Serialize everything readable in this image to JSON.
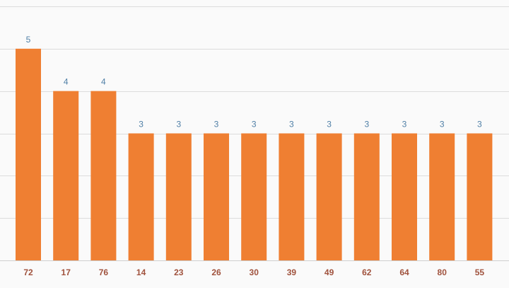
{
  "colors": {
    "bar": "#ef7f32",
    "value_label": "#4f7fa6",
    "tick_label": "#a0523d",
    "grid": "#dcdcdc",
    "background": "#fafafa"
  },
  "chart_data": {
    "type": "bar",
    "title": "",
    "xlabel": "",
    "ylabel": "",
    "categories": [
      "72",
      "17",
      "76",
      "14",
      "23",
      "26",
      "30",
      "39",
      "49",
      "62",
      "64",
      "80",
      "55"
    ],
    "values": [
      5,
      4,
      4,
      3,
      3,
      3,
      3,
      3,
      3,
      3,
      3,
      3,
      3
    ],
    "ylim": [
      0,
      6
    ],
    "grid": true,
    "legend": "none",
    "data_labels": true
  }
}
